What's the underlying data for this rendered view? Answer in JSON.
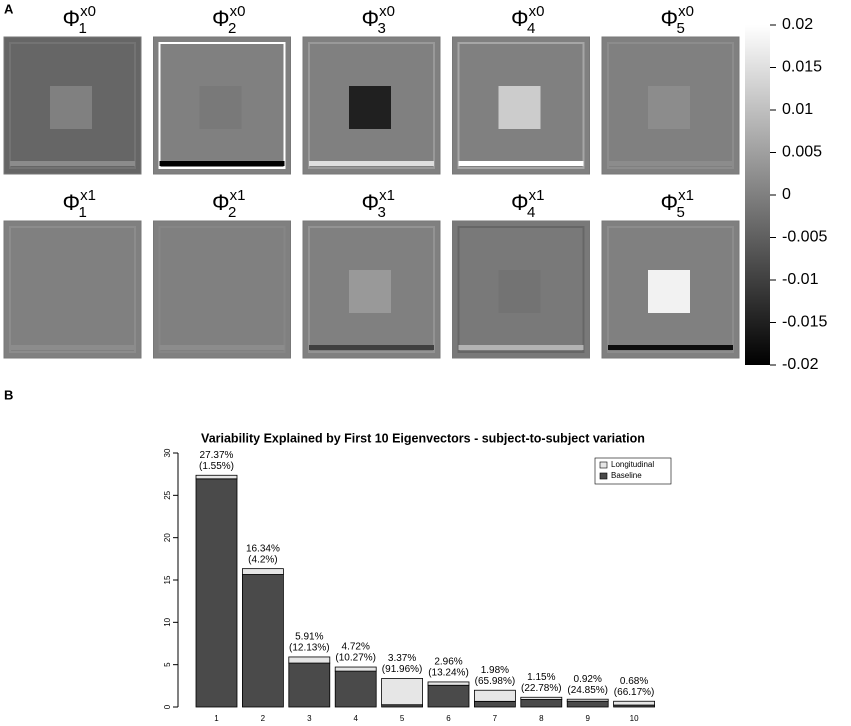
{
  "chart_data": [
    {
      "type": "image_grid",
      "panel_label": "A",
      "clim": [
        -0.02,
        0.02
      ],
      "cticks": [
        0.02,
        0.015,
        0.01,
        0.005,
        0,
        -0.005,
        -0.01,
        -0.015,
        -0.02
      ],
      "tiles": [
        {
          "symbol": "Φ",
          "sub": "1",
          "sup": "x0",
          "background": -0.004,
          "center": 0.0,
          "frame": -0.002,
          "band": 0.002
        },
        {
          "symbol": "Φ",
          "sub": "2",
          "sup": "x0",
          "background": 0.0,
          "center": -0.001,
          "frame": 0.02,
          "band": -0.02
        },
        {
          "symbol": "Φ",
          "sub": "3",
          "sup": "x0",
          "background": 0.0,
          "center": -0.015,
          "frame": 0.004,
          "band": 0.015
        },
        {
          "symbol": "Φ",
          "sub": "4",
          "sup": "x0",
          "background": 0.0,
          "center": 0.012,
          "frame": 0.006,
          "band": 0.02
        },
        {
          "symbol": "Φ",
          "sub": "5",
          "sup": "x0",
          "background": 0.0,
          "center": 0.002,
          "frame": 0.002,
          "band": 0.002
        },
        {
          "symbol": "Φ",
          "sub": "1",
          "sup": "x1",
          "background": 0.0,
          "center": 0.0,
          "frame": 0.002,
          "band": 0.002
        },
        {
          "symbol": "Φ",
          "sub": "2",
          "sup": "x1",
          "background": 0.0,
          "center": 0.0,
          "frame": 0.001,
          "band": 0.002
        },
        {
          "symbol": "Φ",
          "sub": "3",
          "sup": "x1",
          "background": 0.0,
          "center": 0.004,
          "frame": 0.003,
          "band": -0.01
        },
        {
          "symbol": "Φ",
          "sub": "4",
          "sup": "x1",
          "background": -0.001,
          "center": -0.002,
          "frame": -0.004,
          "band": 0.008
        },
        {
          "symbol": "Φ",
          "sub": "5",
          "sup": "x1",
          "background": 0.0,
          "center": 0.018,
          "frame": 0.002,
          "band": -0.018
        }
      ]
    },
    {
      "type": "bar",
      "panel_label": "B",
      "title": "Variability Explained by First 10 Eigenvectors - subject-to-subject variation",
      "categories": [
        "1",
        "2",
        "3",
        "4",
        "5",
        "6",
        "7",
        "8",
        "9",
        "10"
      ],
      "series": [
        {
          "name": "Baseline",
          "color": "#4a4a4a",
          "values": [
            26.95,
            15.65,
            5.19,
            4.24,
            0.27,
            2.57,
            0.67,
            0.89,
            0.69,
            0.23
          ]
        },
        {
          "name": "Longitudinal",
          "color": "#e6e6e6",
          "values": [
            0.42,
            0.69,
            0.72,
            0.48,
            3.1,
            0.39,
            1.31,
            0.26,
            0.23,
            0.45
          ]
        }
      ],
      "bar_labels": [
        {
          "total": "27.37%",
          "share": "(1.55%)"
        },
        {
          "total": "16.34%",
          "share": "(4.2%)"
        },
        {
          "total": "5.91%",
          "share": "(12.13%)"
        },
        {
          "total": "4.72%",
          "share": "(10.27%)"
        },
        {
          "total": "3.37%",
          "share": "(91.96%)"
        },
        {
          "total": "2.96%",
          "share": "(13.24%)"
        },
        {
          "total": "1.98%",
          "share": "(65.98%)"
        },
        {
          "total": "1.15%",
          "share": "(22.78%)"
        },
        {
          "total": "0.92%",
          "share": "(24.85%)"
        },
        {
          "total": "0.68%",
          "share": "(66.17%)"
        }
      ],
      "ylim": [
        0,
        30
      ],
      "yticks": [
        0,
        5,
        10,
        15,
        20,
        25,
        30
      ],
      "legend": "top-right"
    }
  ]
}
